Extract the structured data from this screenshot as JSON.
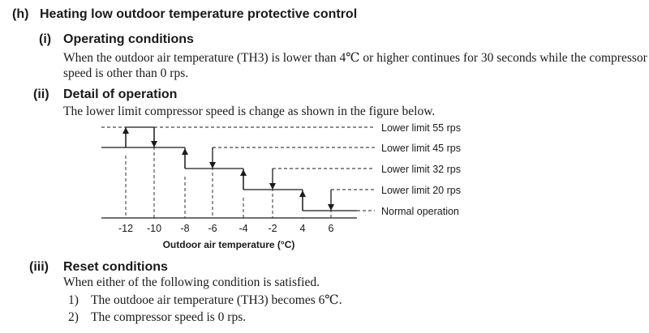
{
  "section": {
    "marker": "(h)",
    "title": "Heating low outdoor temperature protective control"
  },
  "operating_conditions": {
    "marker": "(i)",
    "heading": "Operating conditions",
    "line1": "When the outdoor air temperature (TH3) is lower than 4℃ or higher continues for 30 seconds while the compressor",
    "line2": "speed is other than 0 rps."
  },
  "detail": {
    "marker": "(ii)",
    "heading": "Detail of operation",
    "text": "The lower limit compressor speed is change as shown in the figure below."
  },
  "chart_data": {
    "type": "step",
    "xlabel": "Outdoor air temperature (°C)",
    "x_ticks": [
      "-12",
      "-10",
      "-8",
      "-6",
      "-4",
      "-2",
      "4",
      "6"
    ],
    "levels": [
      "Lower limit 55 rps",
      "Lower limit 45 rps",
      "Lower limit 32 rps",
      "Lower limit 20 rps",
      "Normal operation"
    ],
    "steps": [
      {
        "level": "Lower limit 55 rps",
        "rise_at": -12,
        "fall_at": -10
      },
      {
        "level": "Lower limit 45 rps",
        "rise_at": -8,
        "fall_at": -6
      },
      {
        "level": "Lower limit 32 rps",
        "rise_at": -4,
        "fall_at": -2
      },
      {
        "level": "Lower limit 20 rps",
        "rise_at": 4,
        "fall_at": 6
      }
    ]
  },
  "reset": {
    "marker": "(iii)",
    "heading": "Reset conditions",
    "text": "When either of the following condition is satisfied.",
    "items": [
      {
        "num": "1)",
        "text": "The outdooe air temperature (TH3) becomes 6℃."
      },
      {
        "num": "2)",
        "text": "The compressor speed is 0 rps."
      }
    ]
  }
}
